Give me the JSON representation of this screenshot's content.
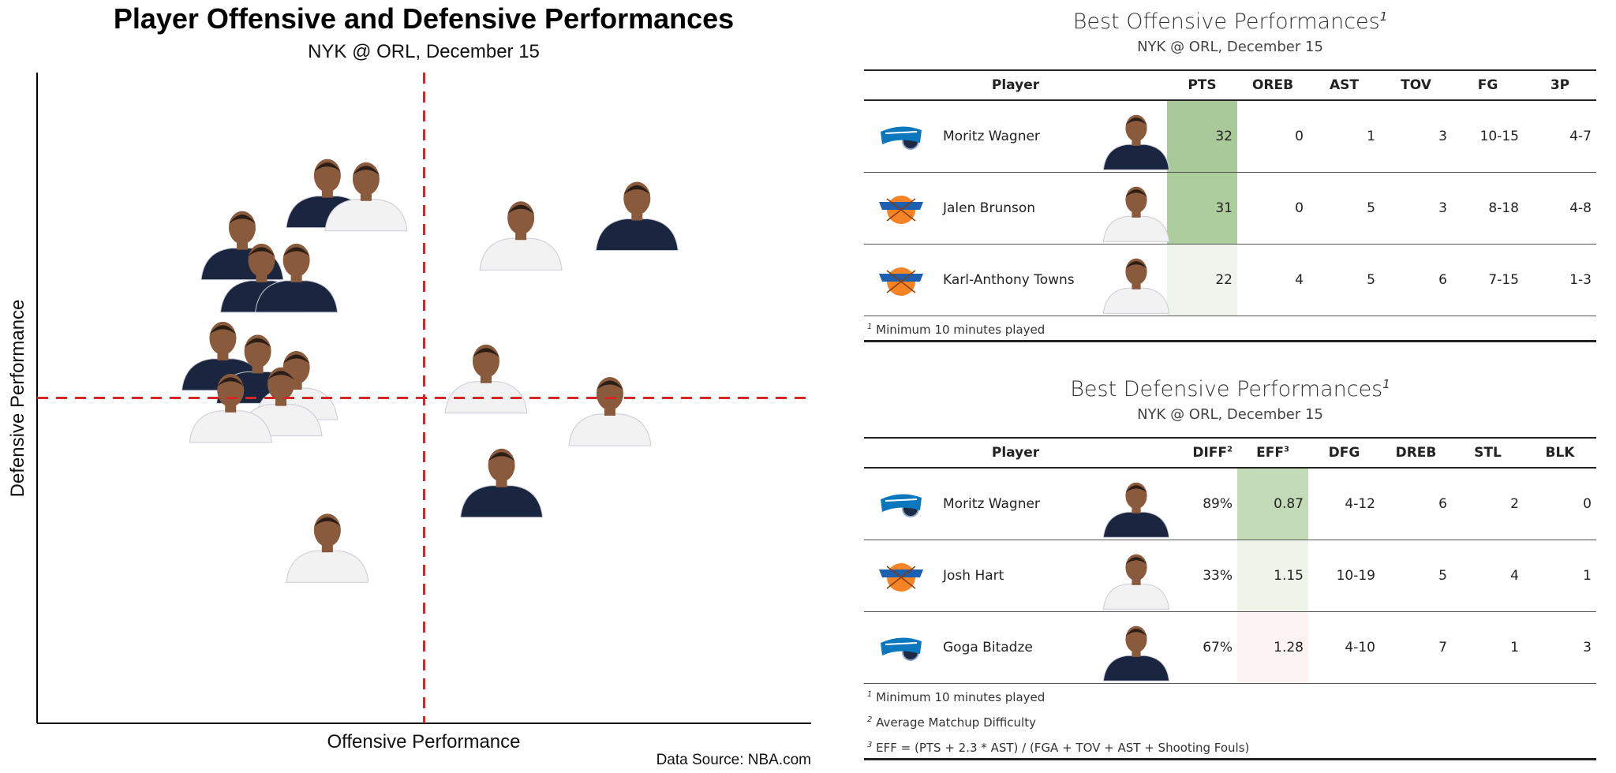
{
  "chart_data": {
    "type": "scatter",
    "title": "Player Offensive and Defensive Performances",
    "subtitle": "NYK @ ORL, December 15",
    "xlabel": "Offensive Performance",
    "ylabel": "Defensive Performance",
    "source": "Data Source: NBA.com",
    "reference_lines": {
      "x": 0.0,
      "y": 0.0,
      "style": "dashed",
      "color": "#d62728"
    },
    "xlim": [
      -1.0,
      1.0
    ],
    "ylim": [
      -1.0,
      1.0
    ],
    "grid": false,
    "points": [
      {
        "x": -0.25,
        "y": 0.63,
        "team": "ORL",
        "jersey": "#1a2540"
      },
      {
        "x": -0.15,
        "y": 0.62,
        "team": "NYK",
        "jersey": "#f2f2f2"
      },
      {
        "x": -0.47,
        "y": 0.47,
        "team": "ORL",
        "jersey": "#1a2540"
      },
      {
        "x": -0.42,
        "y": 0.37,
        "team": "ORL",
        "jersey": "#1a2540"
      },
      {
        "x": -0.33,
        "y": 0.37,
        "team": "ORL",
        "jersey": "#1a2540"
      },
      {
        "x": 0.25,
        "y": 0.5,
        "team": "NYK",
        "jersey": "#f2f2f2"
      },
      {
        "x": 0.55,
        "y": 0.56,
        "team": "ORL",
        "jersey": "#1a2540"
      },
      {
        "x": -0.52,
        "y": 0.13,
        "team": "ORL",
        "jersey": "#1a2540"
      },
      {
        "x": -0.43,
        "y": 0.09,
        "team": "ORL",
        "jersey": "#1a2540"
      },
      {
        "x": -0.33,
        "y": 0.04,
        "team": "NYK",
        "jersey": "#f2f2f2"
      },
      {
        "x": -0.37,
        "y": -0.01,
        "team": "NYK",
        "jersey": "#f2f2f2"
      },
      {
        "x": -0.5,
        "y": -0.03,
        "team": "NYK",
        "jersey": "#f2f2f2"
      },
      {
        "x": 0.16,
        "y": 0.06,
        "team": "NYK",
        "jersey": "#f2f2f2"
      },
      {
        "x": 0.48,
        "y": -0.04,
        "team": "NYK",
        "jersey": "#f2f2f2"
      },
      {
        "x": 0.2,
        "y": -0.26,
        "team": "ORL",
        "jersey": "#1a2540"
      },
      {
        "x": -0.25,
        "y": -0.46,
        "team": "NYK",
        "jersey": "#f2f2f2"
      }
    ]
  },
  "offense": {
    "title": "Best Offensive Performances",
    "title_note": "1",
    "subtitle": "NYK @ ORL, December 15",
    "headers": [
      "Player",
      "PTS",
      "OREB",
      "AST",
      "TOV",
      "FG",
      "3P"
    ],
    "rows": [
      {
        "team": "ORL",
        "name": "Moritz Wagner",
        "jersey": "#1a2540",
        "pts": "32",
        "oreb": "0",
        "ast": "1",
        "tov": "3",
        "fg": "10-15",
        "tp": "4-7",
        "pts_color": "#a9c99a"
      },
      {
        "team": "NYK",
        "name": "Jalen Brunson",
        "jersey": "#f2f2f2",
        "pts": "31",
        "oreb": "0",
        "ast": "5",
        "tov": "3",
        "fg": "8-18",
        "tp": "4-8",
        "pts_color": "#aecd9f"
      },
      {
        "team": "NYK",
        "name": "Karl-Anthony Towns",
        "jersey": "#f2f2f2",
        "pts": "22",
        "oreb": "4",
        "ast": "5",
        "tov": "6",
        "fg": "7-15",
        "tp": "1-3",
        "pts_color": "#eff5ec"
      }
    ],
    "footnotes": [
      {
        "mark": "1",
        "text": "Minimum 10 minutes played"
      }
    ]
  },
  "defense": {
    "title": "Best Defensive Performances",
    "title_note": "1",
    "subtitle": "NYK @ ORL, December 15",
    "headers": [
      "Player",
      "DIFF",
      "EFF",
      "DFG",
      "DREB",
      "STL",
      "BLK"
    ],
    "header_notes": {
      "diff": "2",
      "eff": "3"
    },
    "rows": [
      {
        "team": "ORL",
        "name": "Moritz Wagner",
        "jersey": "#1a2540",
        "diff": "89%",
        "eff": "0.87",
        "dfg": "4-12",
        "dreb": "6",
        "stl": "2",
        "blk": "0",
        "eff_color": "#c3dbb7"
      },
      {
        "team": "NYK",
        "name": "Josh Hart",
        "jersey": "#f2f2f2",
        "diff": "33%",
        "eff": "1.15",
        "dfg": "10-19",
        "dreb": "5",
        "stl": "4",
        "blk": "1",
        "eff_color": "#eef4ea"
      },
      {
        "team": "ORL",
        "name": "Goga Bitadze",
        "jersey": "#1a2540",
        "diff": "67%",
        "eff": "1.28",
        "dfg": "4-10",
        "dreb": "7",
        "stl": "1",
        "blk": "3",
        "eff_color": "#fdf3f3"
      }
    ],
    "footnotes": [
      {
        "mark": "1",
        "text": "Minimum 10 minutes played"
      },
      {
        "mark": "2",
        "text": "Average Matchup Difficulty"
      },
      {
        "mark": "3",
        "text": "EFF = (PTS + 2.3 * AST) / (FGA + TOV + AST + Shooting Fouls)"
      }
    ]
  },
  "colors": {
    "reference_line": "#d62728",
    "skin": "#8a5a3c",
    "orl_logo": "#0b77bd",
    "nyk_logo": "#f58426",
    "nyk_logo_accent": "#1d5fb0"
  }
}
